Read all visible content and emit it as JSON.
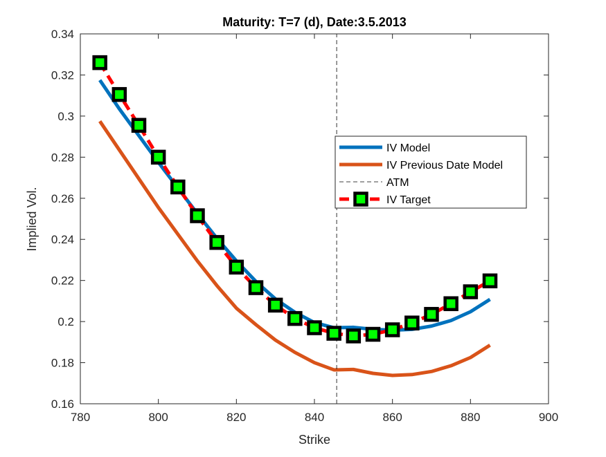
{
  "chart_data": {
    "type": "line",
    "title": "Maturity: T=7 (d), Date:3.5.2013",
    "xlabel": "Strike",
    "ylabel": "Implied Vol.",
    "xlim": [
      780,
      900
    ],
    "ylim": [
      0.16,
      0.34
    ],
    "xticks": [
      780,
      800,
      820,
      840,
      860,
      880,
      900
    ],
    "yticks": [
      0.16,
      0.18,
      0.2,
      0.22,
      0.24,
      0.26,
      0.28,
      0.3,
      0.32,
      0.34
    ],
    "xtick_labels": [
      "780",
      "800",
      "820",
      "840",
      "860",
      "880",
      "900"
    ],
    "ytick_labels": [
      "0.16",
      "0.18",
      "0.2",
      "0.22",
      "0.24",
      "0.26",
      "0.28",
      "0.3",
      "0.32",
      "0.34"
    ],
    "grid": false,
    "legend_position": "center-right",
    "atm": 845.7,
    "series": [
      {
        "name": "IV Model",
        "style": "solid",
        "color": "#0072BD",
        "x": [
          785,
          790,
          795,
          800,
          805,
          810,
          815,
          820,
          825,
          830,
          835,
          840,
          845,
          850,
          855,
          860,
          865,
          870,
          875,
          880,
          885
        ],
        "y": [
          0.3175,
          0.3035,
          0.2905,
          0.2775,
          0.265,
          0.2525,
          0.2405,
          0.2295,
          0.2195,
          0.211,
          0.2045,
          0.1995,
          0.197,
          0.1972,
          0.1962,
          0.1958,
          0.1962,
          0.1978,
          0.2005,
          0.2048,
          0.2108
        ]
      },
      {
        "name": "IV Previous Date Model",
        "style": "solid",
        "color": "#D95319",
        "x": [
          785,
          790,
          795,
          800,
          805,
          810,
          815,
          820,
          825,
          830,
          835,
          840,
          845,
          850,
          855,
          860,
          865,
          870,
          875,
          880,
          885
        ],
        "y": [
          0.2975,
          0.2835,
          0.2695,
          0.2555,
          0.2425,
          0.2295,
          0.2175,
          0.2065,
          0.1985,
          0.191,
          0.185,
          0.18,
          0.1765,
          0.1767,
          0.1748,
          0.1738,
          0.1742,
          0.1757,
          0.1785,
          0.1825,
          0.1885
        ]
      },
      {
        "name": "ATM",
        "style": "dashed",
        "color": "#000000",
        "x": [
          845.7,
          845.7
        ],
        "y": [
          0.16,
          0.34
        ]
      },
      {
        "name": "IV Target",
        "style": "dashed-with-square-markers",
        "color": "#FF0000",
        "marker_edge": "#000000",
        "marker_face": "#00FF00",
        "x": [
          785,
          790,
          795,
          800,
          805,
          810,
          815,
          820,
          825,
          830,
          835,
          840,
          845,
          850,
          855,
          860,
          865,
          870,
          875,
          880,
          885
        ],
        "y": [
          0.326,
          0.3105,
          0.2955,
          0.28,
          0.2655,
          0.2515,
          0.2385,
          0.2265,
          0.2165,
          0.208,
          0.2015,
          0.197,
          0.1943,
          0.193,
          0.1938,
          0.196,
          0.1993,
          0.2035,
          0.2087,
          0.2145,
          0.2198
        ]
      }
    ]
  }
}
